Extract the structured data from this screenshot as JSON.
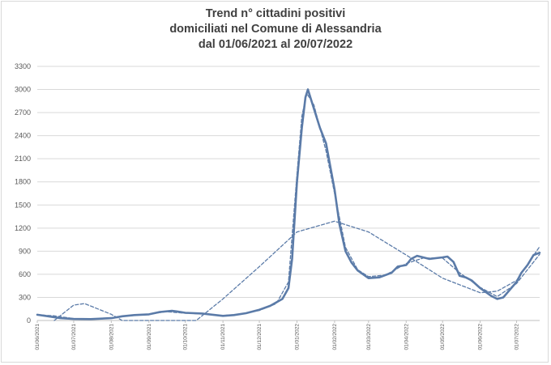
{
  "chart_data": {
    "type": "line",
    "title": [
      "Trend n° cittadini positivi",
      "domiciliati nel Comune di Alessandria",
      "dal 01/06/2021 al 20/07/2022"
    ],
    "xlabel": "",
    "ylabel": "",
    "ylim": [
      0,
      3300
    ],
    "yticks": [
      0,
      300,
      600,
      900,
      1200,
      1500,
      1800,
      2100,
      2400,
      2700,
      3000,
      3300
    ],
    "xtick_labels": [
      "01/06/2021",
      "01/07/2021",
      "01/08/2021",
      "01/09/2021",
      "01/10/2021",
      "01/11/2021",
      "01/12/2021",
      "01/01/2022",
      "01/02/2022",
      "01/03/2022",
      "01/04/2022",
      "01/05/2022",
      "01/06/2022",
      "01/07/2022"
    ],
    "grid": "horizontal",
    "legend": "none",
    "series": [
      {
        "style": "solid",
        "color": "#5b7ba8",
        "points": [
          [
            "01/06/2021",
            75
          ],
          [
            "10/06/2021",
            55
          ],
          [
            "20/06/2021",
            30
          ],
          [
            "01/07/2021",
            20
          ],
          [
            "15/07/2021",
            18
          ],
          [
            "01/08/2021",
            30
          ],
          [
            "10/08/2021",
            55
          ],
          [
            "20/08/2021",
            70
          ],
          [
            "01/09/2021",
            80
          ],
          [
            "10/09/2021",
            110
          ],
          [
            "20/09/2021",
            125
          ],
          [
            "25/09/2021",
            115
          ],
          [
            "01/10/2021",
            100
          ],
          [
            "15/10/2021",
            90
          ],
          [
            "01/11/2021",
            60
          ],
          [
            "10/11/2021",
            70
          ],
          [
            "20/11/2021",
            95
          ],
          [
            "01/12/2021",
            140
          ],
          [
            "10/12/2021",
            190
          ],
          [
            "20/12/2021",
            280
          ],
          [
            "25/12/2021",
            420
          ],
          [
            "28/12/2021",
            800
          ],
          [
            "01/01/2022",
            1800
          ],
          [
            "05/01/2022",
            2500
          ],
          [
            "08/01/2022",
            2900
          ],
          [
            "10/01/2022",
            3000
          ],
          [
            "15/01/2022",
            2750
          ],
          [
            "20/01/2022",
            2500
          ],
          [
            "25/01/2022",
            2300
          ],
          [
            "01/02/2022",
            1700
          ],
          [
            "05/02/2022",
            1250
          ],
          [
            "10/02/2022",
            900
          ],
          [
            "15/02/2022",
            750
          ],
          [
            "20/02/2022",
            650
          ],
          [
            "01/03/2022",
            550
          ],
          [
            "10/03/2022",
            560
          ],
          [
            "20/03/2022",
            620
          ],
          [
            "25/03/2022",
            700
          ],
          [
            "01/04/2022",
            720
          ],
          [
            "05/04/2022",
            800
          ],
          [
            "10/04/2022",
            840
          ],
          [
            "20/04/2022",
            800
          ],
          [
            "01/05/2022",
            820
          ],
          [
            "05/05/2022",
            830
          ],
          [
            "10/05/2022",
            760
          ],
          [
            "15/05/2022",
            580
          ],
          [
            "20/05/2022",
            560
          ],
          [
            "25/05/2022",
            520
          ],
          [
            "01/06/2022",
            420
          ],
          [
            "10/06/2022",
            320
          ],
          [
            "15/06/2022",
            280
          ],
          [
            "20/06/2022",
            300
          ],
          [
            "01/07/2022",
            500
          ],
          [
            "05/07/2022",
            620
          ],
          [
            "10/07/2022",
            720
          ],
          [
            "15/07/2022",
            850
          ],
          [
            "20/07/2022",
            880
          ]
        ]
      },
      {
        "style": "dashed",
        "color": "#5b7ba8",
        "points": [
          [
            "01/06/2021",
            75
          ],
          [
            "15/06/2021",
            60
          ],
          [
            "01/07/2021",
            25
          ],
          [
            "15/07/2021",
            20
          ],
          [
            "01/08/2021",
            35
          ],
          [
            "15/08/2021",
            60
          ],
          [
            "01/09/2021",
            80
          ],
          [
            "15/09/2021",
            115
          ],
          [
            "01/10/2021",
            95
          ],
          [
            "15/10/2021",
            85
          ],
          [
            "01/11/2021",
            65
          ],
          [
            "15/11/2021",
            80
          ],
          [
            "01/12/2021",
            130
          ],
          [
            "15/12/2021",
            220
          ],
          [
            "25/12/2021",
            500
          ],
          [
            "01/01/2022",
            1900
          ],
          [
            "05/01/2022",
            2650
          ],
          [
            "09/01/2022",
            2950
          ],
          [
            "15/01/2022",
            2800
          ],
          [
            "25/01/2022",
            2200
          ],
          [
            "01/02/2022",
            1650
          ],
          [
            "10/02/2022",
            950
          ],
          [
            "20/02/2022",
            660
          ],
          [
            "01/03/2022",
            570
          ],
          [
            "15/03/2022",
            590
          ],
          [
            "01/04/2022",
            740
          ],
          [
            "15/04/2022",
            810
          ],
          [
            "01/05/2022",
            810
          ],
          [
            "15/05/2022",
            620
          ],
          [
            "01/06/2022",
            430
          ],
          [
            "15/06/2022",
            310
          ],
          [
            "01/07/2022",
            480
          ],
          [
            "20/07/2022",
            860
          ]
        ]
      },
      {
        "style": "dashed",
        "color": "#5b7ba8",
        "points": [
          [
            "15/06/2021",
            0
          ],
          [
            "01/07/2021",
            200
          ],
          [
            "10/07/2021",
            220
          ],
          [
            "01/08/2021",
            80
          ],
          [
            "10/08/2021",
            0
          ],
          [
            "10/10/2021",
            0
          ],
          [
            "01/11/2021",
            280
          ],
          [
            "01/12/2021",
            700
          ],
          [
            "01/01/2022",
            1150
          ],
          [
            "01/02/2022",
            1290
          ],
          [
            "01/03/2022",
            1150
          ],
          [
            "01/04/2022",
            850
          ],
          [
            "01/05/2022",
            550
          ],
          [
            "01/06/2022",
            360
          ],
          [
            "15/06/2022",
            380
          ],
          [
            "01/07/2022",
            520
          ],
          [
            "20/07/2022",
            960
          ]
        ]
      }
    ]
  }
}
